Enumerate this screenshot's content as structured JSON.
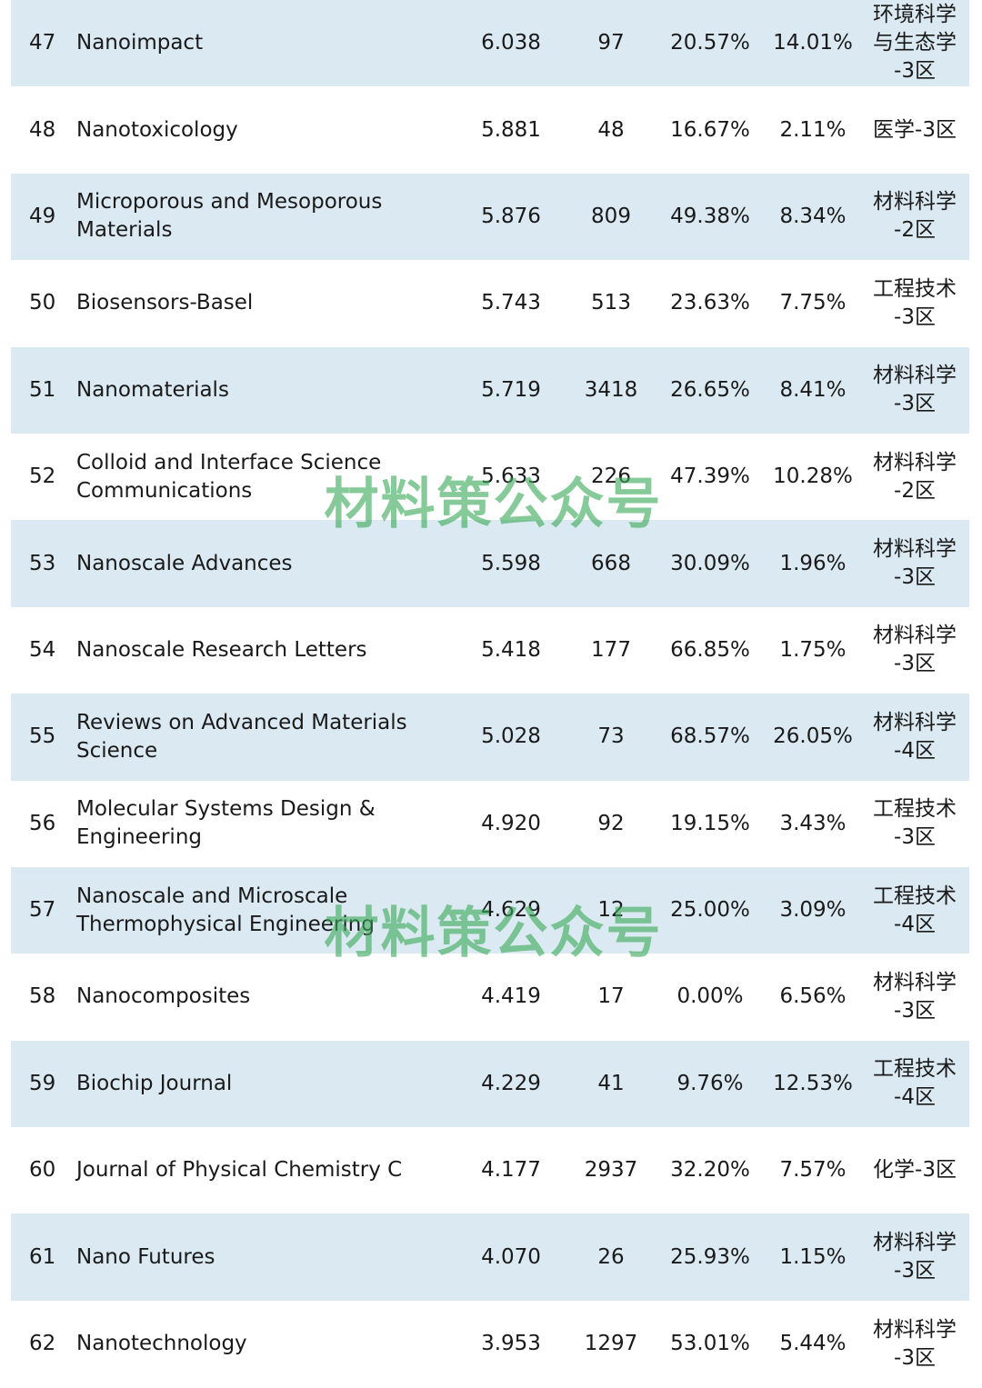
{
  "watermark": "材料策公众号",
  "rows": [
    {
      "rank": "47",
      "name": "Nanoimpact",
      "if": "6.038",
      "count": "97",
      "pct1": "20.57%",
      "pct2": "14.01%",
      "zone": "环境科学\n与生态学\n-3区"
    },
    {
      "rank": "48",
      "name": "Nanotoxicology",
      "if": "5.881",
      "count": "48",
      "pct1": "16.67%",
      "pct2": "2.11%",
      "zone": "医学-3区"
    },
    {
      "rank": "49",
      "name": "Microporous and Mesoporous\nMaterials",
      "if": "5.876",
      "count": "809",
      "pct1": "49.38%",
      "pct2": "8.34%",
      "zone": "材料科学\n-2区"
    },
    {
      "rank": "50",
      "name": "Biosensors-Basel",
      "if": "5.743",
      "count": "513",
      "pct1": "23.63%",
      "pct2": "7.75%",
      "zone": "工程技术\n-3区"
    },
    {
      "rank": "51",
      "name": "Nanomaterials",
      "if": "5.719",
      "count": "3418",
      "pct1": "26.65%",
      "pct2": "8.41%",
      "zone": "材料科学\n-3区"
    },
    {
      "rank": "52",
      "name": "Colloid and Interface Science\nCommunications",
      "if": "5.633",
      "count": "226",
      "pct1": "47.39%",
      "pct2": "10.28%",
      "zone": "材料科学\n-2区"
    },
    {
      "rank": "53",
      "name": "Nanoscale Advances",
      "if": "5.598",
      "count": "668",
      "pct1": "30.09%",
      "pct2": "1.96%",
      "zone": "材料科学\n-3区"
    },
    {
      "rank": "54",
      "name": "Nanoscale Research Letters",
      "if": "5.418",
      "count": "177",
      "pct1": "66.85%",
      "pct2": "1.75%",
      "zone": "材料科学\n-3区"
    },
    {
      "rank": "55",
      "name": "Reviews on Advanced Materials\nScience",
      "if": "5.028",
      "count": "73",
      "pct1": "68.57%",
      "pct2": "26.05%",
      "zone": "材料科学\n-4区"
    },
    {
      "rank": "56",
      "name": "Molecular Systems Design &\nEngineering",
      "if": "4.920",
      "count": "92",
      "pct1": "19.15%",
      "pct2": "3.43%",
      "zone": "工程技术\n-3区"
    },
    {
      "rank": "57",
      "name": "Nanoscale and Microscale\nThermophysical Engineering",
      "if": "4.629",
      "count": "12",
      "pct1": "25.00%",
      "pct2": "3.09%",
      "zone": "工程技术\n-4区"
    },
    {
      "rank": "58",
      "name": "Nanocomposites",
      "if": "4.419",
      "count": "17",
      "pct1": "0.00%",
      "pct2": "6.56%",
      "zone": "材料科学\n-3区"
    },
    {
      "rank": "59",
      "name": "Biochip Journal",
      "if": "4.229",
      "count": "41",
      "pct1": "9.76%",
      "pct2": "12.53%",
      "zone": "工程技术\n-4区"
    },
    {
      "rank": "60",
      "name": "Journal of Physical Chemistry C",
      "if": "4.177",
      "count": "2937",
      "pct1": "32.20%",
      "pct2": "7.57%",
      "zone": "化学-3区"
    },
    {
      "rank": "61",
      "name": "Nano Futures",
      "if": "4.070",
      "count": "26",
      "pct1": "25.93%",
      "pct2": "1.15%",
      "zone": "材料科学\n-3区"
    },
    {
      "rank": "62",
      "name": "Nanotechnology",
      "if": "3.953",
      "count": "1297",
      "pct1": "53.01%",
      "pct2": "5.44%",
      "zone": "材料科学\n-3区"
    }
  ]
}
